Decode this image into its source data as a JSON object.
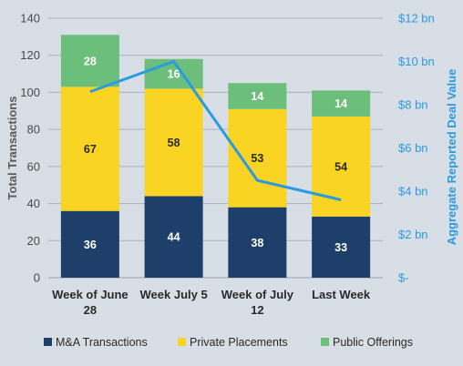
{
  "chart_data": {
    "type": "bar",
    "stacked": true,
    "categories": [
      [
        "Week of June",
        "28"
      ],
      [
        "Week July 5"
      ],
      [
        "Week of July",
        "12"
      ],
      [
        "Last Week"
      ]
    ],
    "series": [
      {
        "name": "M&A Transactions",
        "color": "#1f3f6b",
        "label_color": "#ffffff",
        "values": [
          36,
          44,
          38,
          33
        ]
      },
      {
        "name": "Private Placements",
        "color": "#f9d423",
        "label_color": "#2a2a2a",
        "values": [
          67,
          58,
          53,
          54
        ]
      },
      {
        "name": "Public Offerings",
        "color": "#6bbf7b",
        "label_color": "#ffffff",
        "values": [
          28,
          16,
          14,
          14
        ]
      }
    ],
    "line_series": {
      "name": "Aggregate Reported Deal Value",
      "color": "#2b9be0",
      "values": [
        8.6,
        10.0,
        4.5,
        3.6
      ],
      "axis": "right"
    },
    "ylabel": "Total Transactions",
    "y2label": "Aggregate Reported Deal Value",
    "ylim": [
      0,
      140
    ],
    "yticks": [
      0,
      20,
      40,
      60,
      80,
      100,
      120,
      140
    ],
    "y2lim": [
      0,
      12
    ],
    "y2ticks": [
      "$-",
      "$2 bn",
      "$4 bn",
      "$6 bn",
      "$8 bn",
      "$10 bn",
      "$12 bn"
    ],
    "grid": true,
    "legend_position": "bottom"
  }
}
